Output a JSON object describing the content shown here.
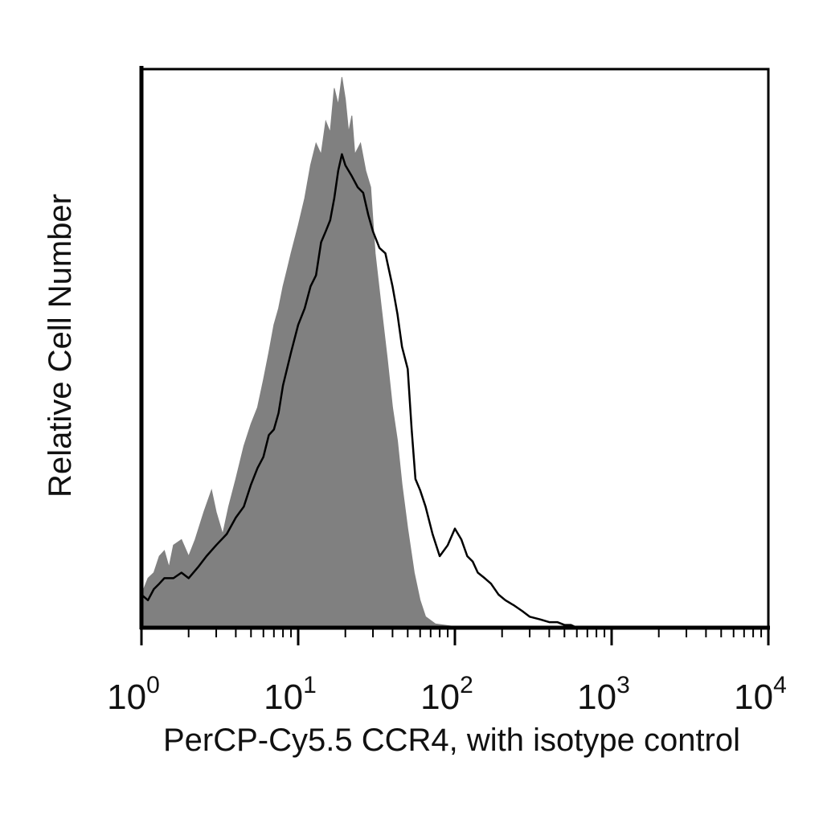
{
  "chart_data": {
    "type": "area",
    "title": "",
    "xlabel": "PerCP-Cy5.5 CCR4, with isotype control",
    "ylabel": "Relative Cell Number",
    "x_scale": "log",
    "xlim": [
      1,
      10000
    ],
    "ylim": [
      0,
      100
    ],
    "x_ticks": [
      {
        "base": "10",
        "exp": "0",
        "value": 1
      },
      {
        "base": "10",
        "exp": "1",
        "value": 10
      },
      {
        "base": "10",
        "exp": "2",
        "value": 100
      },
      {
        "base": "10",
        "exp": "3",
        "value": 1000
      },
      {
        "base": "10",
        "exp": "4",
        "value": 10000
      }
    ],
    "grid": false,
    "legend": "none",
    "series": [
      {
        "style": "filled",
        "color": "#808080",
        "points": [
          [
            1.0,
            6
          ],
          [
            1.1,
            9
          ],
          [
            1.2,
            10
          ],
          [
            1.3,
            13
          ],
          [
            1.4,
            14
          ],
          [
            1.5,
            11
          ],
          [
            1.6,
            15
          ],
          [
            1.8,
            16
          ],
          [
            2.0,
            13
          ],
          [
            2.2,
            16
          ],
          [
            2.5,
            21
          ],
          [
            2.8,
            25
          ],
          [
            3.0,
            21
          ],
          [
            3.3,
            17
          ],
          [
            3.6,
            22
          ],
          [
            4.0,
            27
          ],
          [
            4.5,
            33
          ],
          [
            5.0,
            37
          ],
          [
            5.5,
            40
          ],
          [
            6.0,
            45
          ],
          [
            6.5,
            50
          ],
          [
            7.0,
            55
          ],
          [
            7.5,
            58
          ],
          [
            8.0,
            62
          ],
          [
            8.5,
            65
          ],
          [
            9.0,
            68
          ],
          [
            10.0,
            73
          ],
          [
            11.0,
            78
          ],
          [
            12.0,
            84
          ],
          [
            13.0,
            88
          ],
          [
            14.0,
            86
          ],
          [
            15.0,
            92
          ],
          [
            16.0,
            90
          ],
          [
            17.0,
            98
          ],
          [
            18.0,
            95
          ],
          [
            19.0,
            100
          ],
          [
            20.0,
            96
          ],
          [
            21.0,
            90
          ],
          [
            22.0,
            93
          ],
          [
            23.0,
            86
          ],
          [
            25.0,
            88
          ],
          [
            27.0,
            83
          ],
          [
            29.0,
            80
          ],
          [
            31.0,
            68
          ],
          [
            34.0,
            58
          ],
          [
            37.0,
            49
          ],
          [
            40.0,
            40
          ],
          [
            43.0,
            34
          ],
          [
            46.0,
            26
          ],
          [
            50.0,
            18
          ],
          [
            55.0,
            10
          ],
          [
            60.0,
            5
          ],
          [
            65.0,
            2
          ],
          [
            75.0,
            0.7
          ],
          [
            100.0,
            0.2
          ],
          [
            130.0,
            0
          ]
        ]
      },
      {
        "style": "line",
        "color": "#000000",
        "points": [
          [
            1.0,
            6
          ],
          [
            1.1,
            5
          ],
          [
            1.2,
            7
          ],
          [
            1.3,
            8
          ],
          [
            1.4,
            9
          ],
          [
            1.6,
            9
          ],
          [
            1.8,
            10
          ],
          [
            2.0,
            9
          ],
          [
            2.3,
            11
          ],
          [
            2.6,
            13
          ],
          [
            3.0,
            15
          ],
          [
            3.5,
            17
          ],
          [
            4.0,
            20
          ],
          [
            4.5,
            22
          ],
          [
            5.0,
            26
          ],
          [
            5.5,
            29
          ],
          [
            6.0,
            31
          ],
          [
            6.5,
            35
          ],
          [
            7.0,
            36
          ],
          [
            7.5,
            39
          ],
          [
            8.0,
            44
          ],
          [
            9.0,
            50
          ],
          [
            10.0,
            55
          ],
          [
            11.0,
            58
          ],
          [
            12.0,
            62
          ],
          [
            13.0,
            64
          ],
          [
            14.0,
            70
          ],
          [
            15.0,
            72
          ],
          [
            16.0,
            74
          ],
          [
            17.0,
            78
          ],
          [
            18.0,
            83
          ],
          [
            19.0,
            86
          ],
          [
            20.0,
            84
          ],
          [
            22.0,
            82
          ],
          [
            24.0,
            80
          ],
          [
            26.0,
            79
          ],
          [
            28.0,
            75
          ],
          [
            30.0,
            72
          ],
          [
            33.0,
            69
          ],
          [
            36.0,
            68
          ],
          [
            40.0,
            62
          ],
          [
            43.0,
            57
          ],
          [
            46.0,
            51
          ],
          [
            50.0,
            47
          ],
          [
            53.0,
            36
          ],
          [
            56.0,
            27
          ],
          [
            60.0,
            25
          ],
          [
            65.0,
            22
          ],
          [
            72.0,
            17
          ],
          [
            80.0,
            13
          ],
          [
            90.0,
            15
          ],
          [
            100.0,
            18
          ],
          [
            110.0,
            16
          ],
          [
            120.0,
            13
          ],
          [
            130.0,
            12
          ],
          [
            140.0,
            10
          ],
          [
            155.0,
            9
          ],
          [
            170.0,
            8
          ],
          [
            190.0,
            6
          ],
          [
            210.0,
            5
          ],
          [
            240.0,
            4
          ],
          [
            270.0,
            3
          ],
          [
            300.0,
            2
          ],
          [
            350.0,
            1.5
          ],
          [
            400.0,
            1
          ],
          [
            450.0,
            1
          ],
          [
            500.0,
            0.5
          ],
          [
            550.0,
            0.5
          ],
          [
            600.0,
            0
          ]
        ]
      }
    ]
  }
}
